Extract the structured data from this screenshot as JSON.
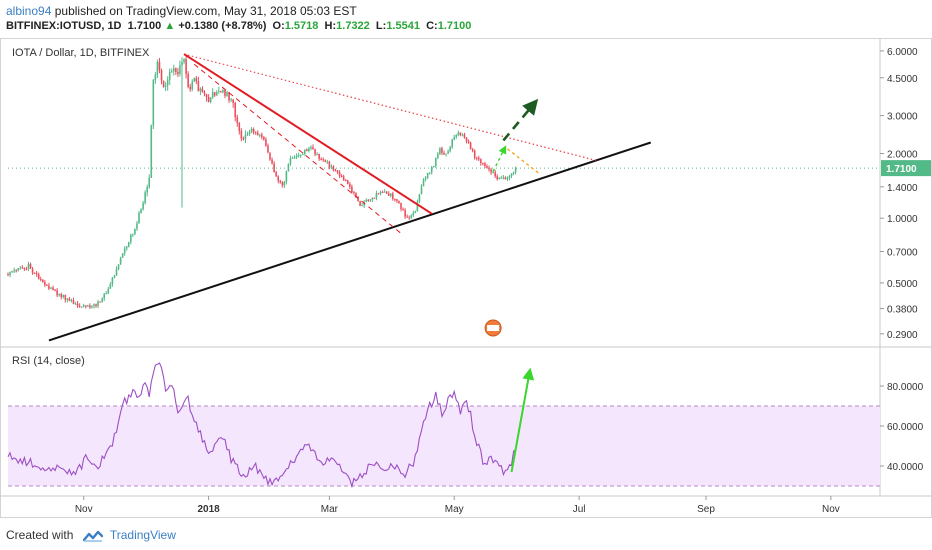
{
  "header": {
    "author": "albino94",
    "published_text": "published on TradingView.com, May 31, 2018 05:03 EST",
    "symbol": "BITFINEX:IOTUSD, 1D",
    "last": "1.7100",
    "change": "+0.1380 (+8.78%)",
    "o_label": "O:",
    "o_value": "1.5718",
    "h_label": "H:",
    "h_value": "1.7322",
    "l_label": "L:",
    "l_value": "1.5541",
    "c_label": "C:",
    "c_value": "1.7100"
  },
  "footer": {
    "created_with": "Created with",
    "brand": "TradingView"
  },
  "colors": {
    "up": "#53b987",
    "down": "#eb4d5c",
    "rsi_line": "#9c4fc4",
    "rsi_band": "#f4e6fd",
    "trend_black": "#111111",
    "trend_red": "#e31b23",
    "arrow_green": "#39d62c",
    "arrow_dark": "#1d5b22",
    "arrow_orange": "#f5a623",
    "last_label": "#53b987"
  },
  "chart_data": [
    {
      "type": "candlestick",
      "title": "IOTA / Dollar, 1D, BITFINEX",
      "y_scale": "log",
      "ylim": [
        0.26,
        6.6
      ],
      "y_ticks": [
        "6.0000",
        "4.5000",
        "3.0000",
        "2.0000",
        "1.4000",
        "1.0000",
        "0.7000",
        "0.5000",
        "0.3800",
        "0.2900"
      ],
      "y_tick_values": [
        6.0,
        4.5,
        3.0,
        2.0,
        1.4,
        1.0,
        0.7,
        0.5,
        0.38,
        0.29
      ],
      "last_value_label": "1.7100",
      "last_value": 1.71,
      "x_labels": [
        "Nov",
        "2018",
        "Mar",
        "May",
        "Jul",
        "Sep",
        "Nov"
      ],
      "x_label_dates": [
        "2017-11-01",
        "2018-01-01",
        "2018-03-01",
        "2018-05-01",
        "2018-07-01",
        "2018-09-01",
        "2018-11-01"
      ],
      "x_range": [
        "2017-09-25",
        "2018-11-25"
      ],
      "price_path": [
        [
          "2017-09-25",
          0.55
        ],
        [
          "2017-10-05",
          0.6
        ],
        [
          "2017-10-12",
          0.5
        ],
        [
          "2017-10-20",
          0.44
        ],
        [
          "2017-10-28",
          0.4
        ],
        [
          "2017-11-05",
          0.38
        ],
        [
          "2017-11-12",
          0.45
        ],
        [
          "2017-11-20",
          0.68
        ],
        [
          "2017-11-26",
          0.9
        ],
        [
          "2017-11-30",
          1.2
        ],
        [
          "2017-12-03",
          1.6
        ],
        [
          "2017-12-05",
          4.3
        ],
        [
          "2017-12-07",
          5.2
        ],
        [
          "2017-12-10",
          4.0
        ],
        [
          "2017-12-13",
          4.8
        ],
        [
          "2017-12-17",
          4.9
        ],
        [
          "2017-12-20",
          5.4
        ],
        [
          "2017-12-22",
          4.0
        ],
        [
          "2017-12-25",
          4.3
        ],
        [
          "2017-12-28",
          3.9
        ],
        [
          "2018-01-01",
          3.6
        ],
        [
          "2018-01-07",
          4.0
        ],
        [
          "2018-01-12",
          3.6
        ],
        [
          "2018-01-17",
          2.4
        ],
        [
          "2018-01-22",
          2.6
        ],
        [
          "2018-01-28",
          2.3
        ],
        [
          "2018-02-03",
          1.55
        ],
        [
          "2018-02-06",
          1.4
        ],
        [
          "2018-02-10",
          1.9
        ],
        [
          "2018-02-15",
          2.0
        ],
        [
          "2018-02-20",
          2.1
        ],
        [
          "2018-02-26",
          1.85
        ],
        [
          "2018-03-03",
          1.7
        ],
        [
          "2018-03-10",
          1.45
        ],
        [
          "2018-03-16",
          1.15
        ],
        [
          "2018-03-22",
          1.25
        ],
        [
          "2018-03-28",
          1.35
        ],
        [
          "2018-04-03",
          1.2
        ],
        [
          "2018-04-08",
          1.0
        ],
        [
          "2018-04-12",
          1.1
        ],
        [
          "2018-04-16",
          1.5
        ],
        [
          "2018-04-20",
          1.7
        ],
        [
          "2018-04-24",
          2.1
        ],
        [
          "2018-04-27",
          2.0
        ],
        [
          "2018-05-01",
          2.4
        ],
        [
          "2018-05-04",
          2.5
        ],
        [
          "2018-05-07",
          2.3
        ],
        [
          "2018-05-11",
          1.95
        ],
        [
          "2018-05-16",
          1.75
        ],
        [
          "2018-05-22",
          1.55
        ],
        [
          "2018-05-27",
          1.5
        ],
        [
          "2018-05-31",
          1.71
        ]
      ],
      "annotations": [
        {
          "type": "trendline",
          "color": "black",
          "points": [
            [
              "2017-10-15",
              0.27
            ],
            [
              "2018-08-05",
              2.25
            ]
          ]
        },
        {
          "type": "trendline",
          "color": "red",
          "points": [
            [
              "2017-12-20",
              5.8
            ],
            [
              "2018-04-20",
              1.05
            ]
          ]
        },
        {
          "type": "trendline",
          "color": "red-dashed",
          "points": [
            [
              "2017-12-25",
              5.2
            ],
            [
              "2018-04-05",
              0.85
            ]
          ]
        },
        {
          "type": "trendline",
          "color": "red-dotted",
          "points": [
            [
              "2017-12-20",
              5.8
            ],
            [
              "2018-07-10",
              1.85
            ]
          ]
        },
        {
          "type": "arrow",
          "color": "dark-green-dashed",
          "points": [
            [
              "2018-05-25",
              2.3
            ],
            [
              "2018-06-10",
              3.5
            ]
          ]
        },
        {
          "type": "arrow",
          "color": "green-dashed",
          "points": [
            [
              "2018-05-20",
              1.65
            ],
            [
              "2018-05-26",
              2.15
            ]
          ]
        },
        {
          "type": "line",
          "color": "orange-dashed",
          "points": [
            [
              "2018-05-27",
              2.1
            ],
            [
              "2018-06-12",
              1.6
            ]
          ]
        }
      ]
    },
    {
      "type": "line",
      "title": "RSI (14, close)",
      "ylim": [
        26,
        98
      ],
      "y_ticks": [
        "80.0000",
        "60.0000",
        "40.0000"
      ],
      "y_tick_values": [
        80,
        60,
        40
      ],
      "band": [
        30,
        70
      ],
      "series": [
        {
          "values": [
            [
              "2017-09-25",
              45
            ],
            [
              "2017-10-05",
              42
            ],
            [
              "2017-10-12",
              40
            ],
            [
              "2017-10-20",
              38
            ],
            [
              "2017-10-28",
              36
            ],
            [
              "2017-11-02",
              44
            ],
            [
              "2017-11-08",
              40
            ],
            [
              "2017-11-14",
              48
            ],
            [
              "2017-11-20",
              70
            ],
            [
              "2017-11-25",
              78
            ],
            [
              "2017-11-28",
              74
            ],
            [
              "2017-12-01",
              82
            ],
            [
              "2017-12-03",
              76
            ],
            [
              "2017-12-06",
              90
            ],
            [
              "2017-12-08",
              93
            ],
            [
              "2017-12-11",
              78
            ],
            [
              "2017-12-14",
              82
            ],
            [
              "2017-12-17",
              66
            ],
            [
              "2017-12-21",
              76
            ],
            [
              "2017-12-25",
              62
            ],
            [
              "2018-01-01",
              48
            ],
            [
              "2018-01-08",
              54
            ],
            [
              "2018-01-12",
              44
            ],
            [
              "2018-01-18",
              36
            ],
            [
              "2018-01-24",
              40
            ],
            [
              "2018-01-30",
              32
            ],
            [
              "2018-02-05",
              34
            ],
            [
              "2018-02-12",
              44
            ],
            [
              "2018-02-19",
              50
            ],
            [
              "2018-02-24",
              42
            ],
            [
              "2018-03-01",
              44
            ],
            [
              "2018-03-07",
              38
            ],
            [
              "2018-03-12",
              32
            ],
            [
              "2018-03-17",
              34
            ],
            [
              "2018-03-22",
              42
            ],
            [
              "2018-03-27",
              38
            ],
            [
              "2018-04-02",
              40
            ],
            [
              "2018-04-06",
              34
            ],
            [
              "2018-04-11",
              42
            ],
            [
              "2018-04-15",
              58
            ],
            [
              "2018-04-19",
              70
            ],
            [
              "2018-04-22",
              76
            ],
            [
              "2018-04-25",
              66
            ],
            [
              "2018-04-28",
              72
            ],
            [
              "2018-05-01",
              78
            ],
            [
              "2018-05-04",
              68
            ],
            [
              "2018-05-07",
              74
            ],
            [
              "2018-05-11",
              56
            ],
            [
              "2018-05-15",
              42
            ],
            [
              "2018-05-20",
              44
            ],
            [
              "2018-05-24",
              38
            ],
            [
              "2018-05-27",
              36
            ],
            [
              "2018-05-29",
              42
            ],
            [
              "2018-05-31",
              48
            ]
          ]
        }
      ],
      "annotations": [
        {
          "type": "arrow",
          "color": "green",
          "points": [
            [
              "2018-05-29",
              37
            ],
            [
              "2018-06-07",
              88
            ]
          ]
        }
      ]
    }
  ]
}
